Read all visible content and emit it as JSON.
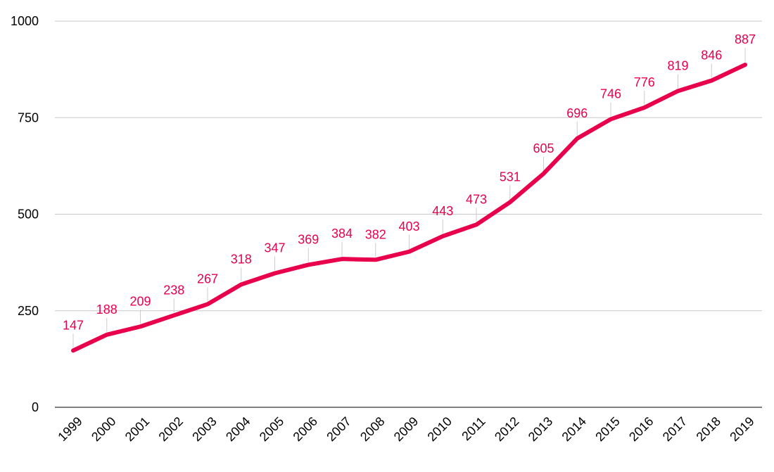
{
  "chart_data": {
    "type": "line",
    "title": "",
    "xlabel": "",
    "ylabel": "",
    "ylim": [
      0,
      1000
    ],
    "yticks": [
      0,
      250,
      500,
      750,
      1000
    ],
    "grid": true,
    "legend": "none",
    "x": [
      "1999",
      "2000",
      "2001",
      "2002",
      "2003",
      "2004",
      "2005",
      "2006",
      "2007",
      "2008",
      "2009",
      "2010",
      "2011",
      "2012",
      "2013",
      "2014",
      "2015",
      "2016",
      "2017",
      "2018",
      "2019"
    ],
    "series": [
      {
        "color": "#e8004c",
        "values": [
          147,
          188,
          209,
          238,
          267,
          318,
          347,
          369,
          384,
          382,
          403,
          443,
          473,
          531,
          605,
          696,
          746,
          776,
          819,
          846,
          887
        ]
      }
    ]
  }
}
